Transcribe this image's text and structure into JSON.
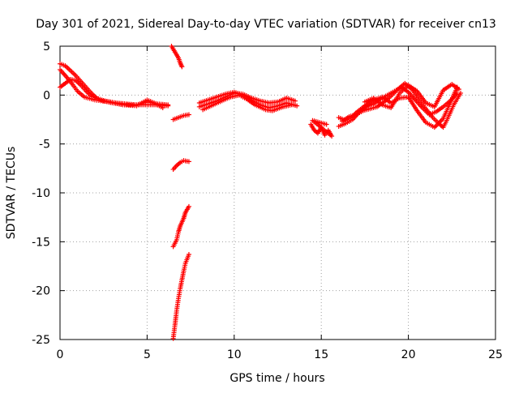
{
  "chart_data": {
    "type": "scatter",
    "title": "Day 301 of 2021, Sidereal Day-to-day VTEC variation (SDTVAR) for receiver cn13",
    "xlabel": "GPS time / hours",
    "ylabel": "SDTVAR / TECUs",
    "xlim": [
      0,
      25
    ],
    "ylim": [
      -25,
      5
    ],
    "xticks": [
      0,
      5,
      10,
      15,
      20,
      25
    ],
    "yticks": [
      -25,
      -20,
      -15,
      -10,
      -5,
      0,
      5
    ],
    "grid": true,
    "marker": "+",
    "series_color": "#ff0000",
    "segments": [
      {
        "name": "early-upper",
        "points": [
          [
            0.0,
            3.2
          ],
          [
            0.3,
            3.0
          ],
          [
            0.6,
            2.5
          ],
          [
            0.9,
            2.0
          ],
          [
            1.2,
            1.4
          ],
          [
            1.5,
            0.8
          ],
          [
            1.8,
            0.2
          ],
          [
            2.1,
            -0.3
          ],
          [
            2.5,
            -0.6
          ],
          [
            3.0,
            -0.8
          ],
          [
            3.5,
            -0.9
          ],
          [
            4.0,
            -1.0
          ],
          [
            4.5,
            -1.0
          ],
          [
            5.0,
            -1.0
          ],
          [
            5.5,
            -1.0
          ],
          [
            6.2,
            -1.1
          ]
        ]
      },
      {
        "name": "early-lower",
        "points": [
          [
            0.0,
            0.8
          ],
          [
            0.3,
            1.2
          ],
          [
            0.6,
            1.6
          ],
          [
            0.9,
            1.5
          ],
          [
            1.2,
            1.0
          ],
          [
            1.5,
            0.4
          ],
          [
            1.8,
            -0.1
          ],
          [
            2.2,
            -0.4
          ],
          [
            2.6,
            -0.6
          ],
          [
            3.2,
            -0.8
          ],
          [
            3.8,
            -0.9
          ],
          [
            4.4,
            -1.0
          ],
          [
            5.0,
            -0.7
          ],
          [
            5.6,
            -0.9
          ],
          [
            6.2,
            -1.0
          ]
        ]
      },
      {
        "name": "early-mid",
        "points": [
          [
            0.0,
            2.6
          ],
          [
            0.4,
            1.8
          ],
          [
            0.8,
            0.9
          ],
          [
            1.0,
            0.4
          ],
          [
            1.4,
            -0.2
          ],
          [
            2.0,
            -0.5
          ],
          [
            2.8,
            -0.7
          ],
          [
            3.6,
            -1.0
          ],
          [
            4.4,
            -1.1
          ],
          [
            5.0,
            -0.5
          ],
          [
            5.4,
            -0.8
          ],
          [
            5.9,
            -1.3
          ]
        ]
      },
      {
        "name": "steep-top",
        "points": [
          [
            6.4,
            5.0
          ],
          [
            6.6,
            4.4
          ],
          [
            6.8,
            3.8
          ],
          [
            6.9,
            3.3
          ],
          [
            7.0,
            2.9
          ]
        ]
      },
      {
        "name": "short-flat-a",
        "points": [
          [
            6.5,
            -2.5
          ],
          [
            6.8,
            -2.3
          ],
          [
            7.1,
            -2.1
          ],
          [
            7.4,
            -2.0
          ]
        ]
      },
      {
        "name": "short-flat-b",
        "points": [
          [
            6.5,
            -7.6
          ],
          [
            6.7,
            -7.2
          ],
          [
            6.9,
            -6.9
          ],
          [
            7.1,
            -6.7
          ],
          [
            7.4,
            -6.8
          ]
        ]
      },
      {
        "name": "steep-mid",
        "points": [
          [
            6.5,
            -15.5
          ],
          [
            6.7,
            -14.8
          ],
          [
            6.8,
            -14.0
          ],
          [
            6.9,
            -13.4
          ],
          [
            7.1,
            -12.6
          ],
          [
            7.2,
            -12.0
          ],
          [
            7.4,
            -11.4
          ]
        ]
      },
      {
        "name": "steep-bottom",
        "points": [
          [
            6.5,
            -24.9
          ],
          [
            6.6,
            -23.5
          ],
          [
            6.7,
            -22.0
          ],
          [
            6.8,
            -20.8
          ],
          [
            6.9,
            -19.8
          ],
          [
            7.0,
            -18.9
          ],
          [
            7.1,
            -18.0
          ],
          [
            7.2,
            -17.2
          ],
          [
            7.4,
            -16.3
          ]
        ]
      },
      {
        "name": "mid-a",
        "points": [
          [
            8.0,
            -1.2
          ],
          [
            8.5,
            -0.9
          ],
          [
            9.0,
            -0.6
          ],
          [
            9.5,
            -0.2
          ],
          [
            10.0,
            0.2
          ],
          [
            10.5,
            0.1
          ],
          [
            11.0,
            -0.3
          ],
          [
            11.5,
            -0.6
          ],
          [
            12.0,
            -0.8
          ],
          [
            12.5,
            -0.7
          ],
          [
            13.0,
            -0.3
          ],
          [
            13.5,
            -0.6
          ]
        ]
      },
      {
        "name": "mid-b",
        "points": [
          [
            8.0,
            -0.8
          ],
          [
            8.5,
            -0.5
          ],
          [
            9.0,
            -0.2
          ],
          [
            9.5,
            0.1
          ],
          [
            10.0,
            0.3
          ],
          [
            10.5,
            0.0
          ],
          [
            11.0,
            -0.5
          ],
          [
            11.5,
            -1.0
          ],
          [
            12.0,
            -1.3
          ],
          [
            12.5,
            -1.1
          ],
          [
            13.0,
            -0.8
          ],
          [
            13.6,
            -1.1
          ]
        ]
      },
      {
        "name": "mid-c",
        "points": [
          [
            8.2,
            -1.5
          ],
          [
            8.8,
            -1.0
          ],
          [
            9.4,
            -0.5
          ],
          [
            9.8,
            -0.2
          ],
          [
            10.3,
            0.0
          ],
          [
            10.8,
            -0.5
          ],
          [
            11.2,
            -1.0
          ],
          [
            11.8,
            -1.5
          ],
          [
            12.2,
            -1.6
          ],
          [
            12.8,
            -1.2
          ],
          [
            13.3,
            -1.0
          ]
        ]
      },
      {
        "name": "cluster-15",
        "points": [
          [
            14.4,
            -3.0
          ],
          [
            14.6,
            -3.6
          ],
          [
            14.8,
            -3.9
          ],
          [
            15.0,
            -3.3
          ],
          [
            15.2,
            -4.1
          ],
          [
            15.4,
            -3.6
          ],
          [
            15.6,
            -4.2
          ],
          [
            14.5,
            -2.6
          ],
          [
            14.9,
            -2.8
          ],
          [
            15.3,
            -3.0
          ]
        ]
      },
      {
        "name": "late-a",
        "points": [
          [
            16.0,
            -3.2
          ],
          [
            16.4,
            -2.9
          ],
          [
            16.8,
            -2.5
          ],
          [
            17.2,
            -1.7
          ],
          [
            17.6,
            -1.2
          ],
          [
            18.0,
            -0.9
          ],
          [
            18.4,
            -0.4
          ],
          [
            18.8,
            0.0
          ],
          [
            19.2,
            0.4
          ],
          [
            19.6,
            0.8
          ],
          [
            20.0,
            0.3
          ],
          [
            20.4,
            -0.5
          ],
          [
            20.8,
            -1.3
          ],
          [
            21.2,
            -2.0
          ],
          [
            21.6,
            -1.7
          ],
          [
            22.0,
            -1.2
          ],
          [
            22.4,
            -0.6
          ],
          [
            22.8,
            0.2
          ]
        ]
      },
      {
        "name": "late-b",
        "points": [
          [
            16.2,
            -2.7
          ],
          [
            16.6,
            -2.2
          ],
          [
            17.0,
            -2.0
          ],
          [
            17.4,
            -1.6
          ],
          [
            17.8,
            -1.4
          ],
          [
            18.2,
            -1.2
          ],
          [
            18.6,
            -0.7
          ],
          [
            19.0,
            -0.1
          ],
          [
            19.4,
            0.6
          ],
          [
            19.8,
            1.2
          ],
          [
            20.2,
            0.6
          ],
          [
            20.6,
            -0.4
          ],
          [
            21.0,
            -1.4
          ],
          [
            21.4,
            -2.3
          ],
          [
            21.8,
            -3.0
          ],
          [
            22.0,
            -3.3
          ],
          [
            22.2,
            -2.6
          ],
          [
            22.6,
            -1.0
          ],
          [
            23.0,
            0.2
          ]
        ]
      },
      {
        "name": "late-c",
        "points": [
          [
            16.0,
            -2.3
          ],
          [
            16.4,
            -2.6
          ],
          [
            16.8,
            -2.2
          ],
          [
            17.0,
            -1.8
          ],
          [
            17.5,
            -1.1
          ],
          [
            18.0,
            -0.5
          ],
          [
            18.5,
            -0.2
          ],
          [
            19.0,
            -0.8
          ],
          [
            19.5,
            -0.3
          ],
          [
            20.0,
            -0.2
          ],
          [
            20.5,
            -1.6
          ],
          [
            21.0,
            -2.8
          ],
          [
            21.5,
            -3.3
          ],
          [
            22.0,
            -2.4
          ],
          [
            22.4,
            -0.8
          ],
          [
            22.8,
            0.8
          ]
        ]
      },
      {
        "name": "late-d",
        "points": [
          [
            17.5,
            -0.7
          ],
          [
            18.0,
            -0.3
          ],
          [
            18.5,
            -1.0
          ],
          [
            19.0,
            -1.3
          ],
          [
            19.5,
            0.2
          ],
          [
            20.0,
            1.0
          ],
          [
            20.5,
            0.4
          ],
          [
            21.0,
            -0.8
          ],
          [
            21.5,
            -1.2
          ],
          [
            22.0,
            0.5
          ],
          [
            22.5,
            1.1
          ],
          [
            22.9,
            0.6
          ]
        ]
      }
    ]
  }
}
